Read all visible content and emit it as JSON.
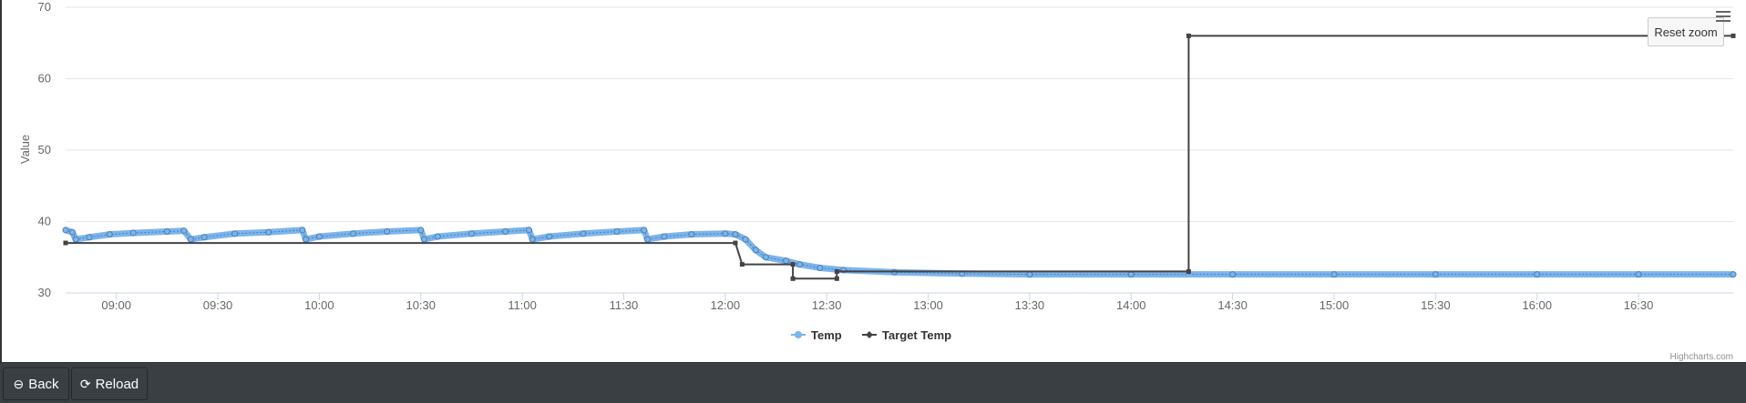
{
  "chart_data": {
    "type": "line",
    "title": "",
    "xlabel": "",
    "ylabel": "Value",
    "ylim": [
      30,
      70
    ],
    "yticks": [
      30,
      40,
      50,
      60,
      70
    ],
    "xlim": [
      "08:45",
      "16:58"
    ],
    "xticks": [
      "09:00",
      "09:30",
      "10:00",
      "10:30",
      "11:00",
      "11:30",
      "12:00",
      "12:30",
      "13:00",
      "13:30",
      "14:00",
      "14:30",
      "15:00",
      "15:30",
      "16:00",
      "16:30"
    ],
    "grid": true,
    "legend": "bottom-center",
    "series": [
      {
        "name": "Temp",
        "color": "#7cb5ec",
        "points": [
          [
            "08:45",
            38.8
          ],
          [
            "08:47",
            38.5
          ],
          [
            "08:48",
            37.5
          ],
          [
            "08:52",
            37.8
          ],
          [
            "08:58",
            38.2
          ],
          [
            "09:05",
            38.4
          ],
          [
            "09:15",
            38.6
          ],
          [
            "09:20",
            38.7
          ],
          [
            "09:22",
            37.5
          ],
          [
            "09:26",
            37.8
          ],
          [
            "09:35",
            38.3
          ],
          [
            "09:45",
            38.5
          ],
          [
            "09:55",
            38.8
          ],
          [
            "09:56",
            37.5
          ],
          [
            "10:00",
            37.9
          ],
          [
            "10:10",
            38.3
          ],
          [
            "10:20",
            38.6
          ],
          [
            "10:30",
            38.8
          ],
          [
            "10:31",
            37.5
          ],
          [
            "10:35",
            37.9
          ],
          [
            "10:45",
            38.3
          ],
          [
            "10:55",
            38.6
          ],
          [
            "11:02",
            38.8
          ],
          [
            "11:03",
            37.5
          ],
          [
            "11:08",
            37.9
          ],
          [
            "11:18",
            38.3
          ],
          [
            "11:28",
            38.6
          ],
          [
            "11:36",
            38.8
          ],
          [
            "11:37",
            37.5
          ],
          [
            "11:42",
            37.9
          ],
          [
            "11:50",
            38.2
          ],
          [
            "12:00",
            38.3
          ],
          [
            "12:03",
            38.2
          ],
          [
            "12:06",
            37.5
          ],
          [
            "12:09",
            36.0
          ],
          [
            "12:12",
            35.0
          ],
          [
            "12:18",
            34.5
          ],
          [
            "12:22",
            34.0
          ],
          [
            "12:28",
            33.5
          ],
          [
            "12:35",
            33.2
          ],
          [
            "12:50",
            32.9
          ],
          [
            "13:10",
            32.7
          ],
          [
            "13:30",
            32.6
          ],
          [
            "14:00",
            32.6
          ],
          [
            "14:30",
            32.6
          ],
          [
            "15:00",
            32.6
          ],
          [
            "15:30",
            32.6
          ],
          [
            "16:00",
            32.6
          ],
          [
            "16:30",
            32.6
          ],
          [
            "16:58",
            32.6
          ]
        ]
      },
      {
        "name": "Target Temp",
        "color": "#434348",
        "points": [
          [
            "08:45",
            37.0
          ],
          [
            "12:03",
            37.0
          ],
          [
            "12:05",
            34.0
          ],
          [
            "12:20",
            34.0
          ],
          [
            "12:20",
            32.0
          ],
          [
            "12:33",
            32.0
          ],
          [
            "12:33",
            33.0
          ],
          [
            "14:17",
            33.0
          ],
          [
            "14:17",
            66.0
          ],
          [
            "16:58",
            66.0
          ]
        ]
      }
    ],
    "reset_zoom_label": "Reset zoom",
    "credits": "Highcharts.com"
  },
  "footer": {
    "back_label": "Back",
    "reload_label": "Reload"
  }
}
